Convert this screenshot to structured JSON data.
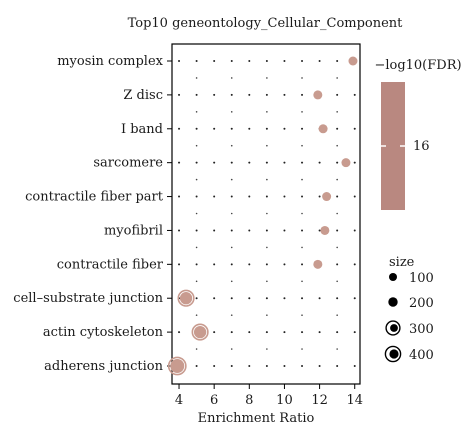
{
  "chart_data": {
    "type": "scatter",
    "title": "Top10 geneontology_Cellular_Component",
    "xlabel": "Enrichment Ratio",
    "ylabel": "",
    "xlim": [
      3.6,
      14.3
    ],
    "xticks": [
      4,
      6,
      8,
      10,
      12,
      14
    ],
    "categories": [
      "myosin complex",
      "Z disc",
      "I band",
      "sarcomere",
      "contractile fiber part",
      "myofibril",
      "contractile fiber",
      "cell–substrate junction",
      "actin cytoskeleton",
      "adherens junction"
    ],
    "points": [
      {
        "category": "myosin complex",
        "x": 13.9,
        "size": 100,
        "neg_log10_fdr": 16
      },
      {
        "category": "Z disc",
        "x": 11.9,
        "size": 100,
        "neg_log10_fdr": 16
      },
      {
        "category": "I band",
        "x": 12.2,
        "size": 100,
        "neg_log10_fdr": 16
      },
      {
        "category": "sarcomere",
        "x": 13.5,
        "size": 100,
        "neg_log10_fdr": 16
      },
      {
        "category": "contractile fiber part",
        "x": 12.4,
        "size": 100,
        "neg_log10_fdr": 16
      },
      {
        "category": "myofibril",
        "x": 12.3,
        "size": 100,
        "neg_log10_fdr": 16
      },
      {
        "category": "contractile fiber",
        "x": 11.9,
        "size": 100,
        "neg_log10_fdr": 16
      },
      {
        "category": "cell–substrate junction",
        "x": 4.4,
        "size": 300,
        "neg_log10_fdr": 16
      },
      {
        "category": "actin cytoskeleton",
        "x": 5.2,
        "size": 300,
        "neg_log10_fdr": 16
      },
      {
        "category": "adherens junction",
        "x": 3.9,
        "size": 400,
        "neg_log10_fdr": 16
      }
    ],
    "grid": "dotted",
    "colorbar": {
      "title": "−log10(FDR)",
      "tick_label": "16",
      "color": "#b98880"
    },
    "size_legend": {
      "title": "size",
      "entries": [
        "100",
        "200",
        "300",
        "400"
      ]
    },
    "point_color": "#c89b8f"
  }
}
